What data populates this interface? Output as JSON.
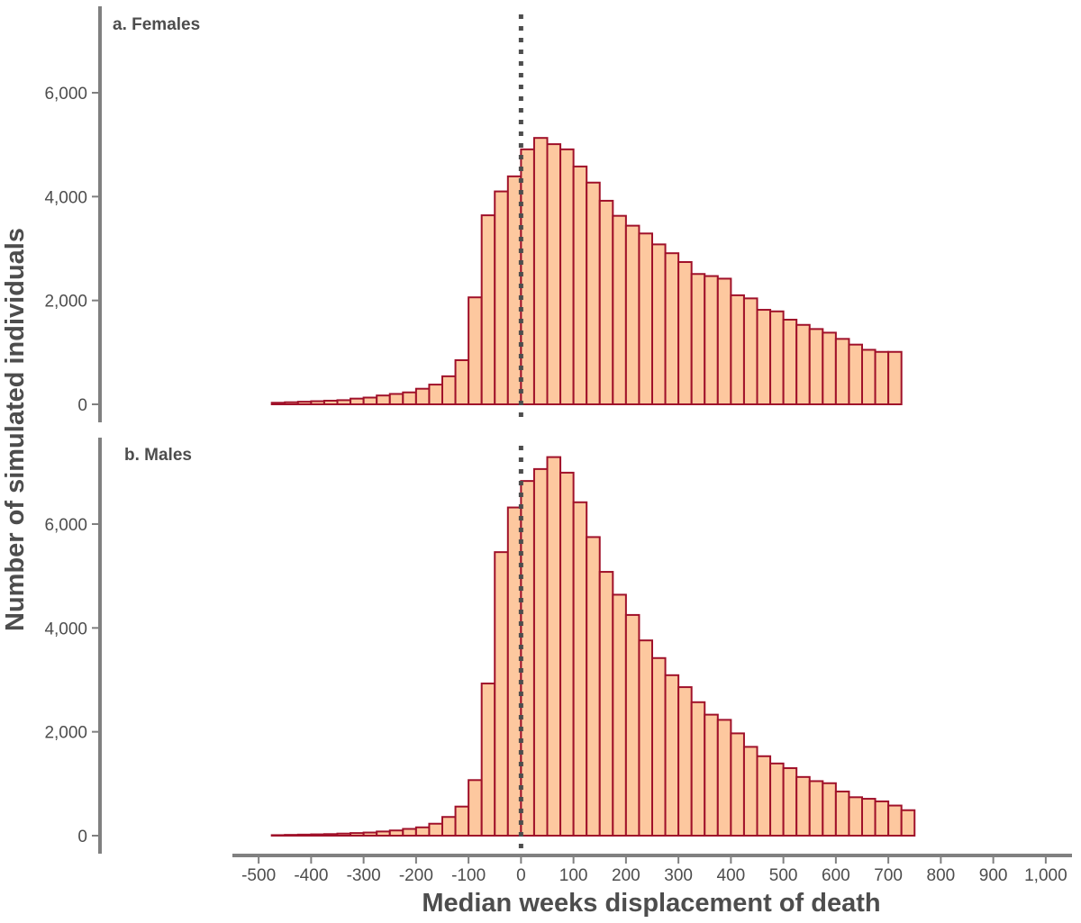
{
  "chart_data": {
    "type": "bar",
    "ylabel": "Number of simulated individuals",
    "xlabel": "Median weeks displacement of death",
    "bin_width": 25,
    "bin_start": -475,
    "xlim": [
      -550,
      1050
    ],
    "x_ticks": [
      -500,
      -400,
      -300,
      -200,
      -100,
      0,
      100,
      200,
      300,
      400,
      500,
      600,
      700,
      800,
      900,
      1000
    ],
    "x_tick_labels": [
      "-500",
      "-400",
      "-300",
      "-200",
      "-100",
      "0",
      "100",
      "200",
      "300",
      "400",
      "500",
      "600",
      "700",
      "800",
      "900",
      "1,000"
    ],
    "ylim": [
      0,
      7300
    ],
    "y_ticks": [
      0,
      2000,
      4000,
      6000
    ],
    "y_tick_labels": [
      "0",
      "2,000",
      "4,000",
      "6,000"
    ],
    "reference_line": {
      "x": 0,
      "style": "dotted"
    },
    "colors": {
      "fill": "#fdc89f",
      "stroke": "#a0112a",
      "axis": "#808080",
      "text": "#4d4d4d",
      "refline": "#4d4d4d"
    },
    "panels": [
      {
        "title": "a. Females",
        "values": [
          30,
          40,
          50,
          60,
          70,
          80,
          110,
          130,
          170,
          200,
          230,
          300,
          380,
          540,
          850,
          2060,
          3640,
          4100,
          4390,
          4910,
          5130,
          5010,
          4910,
          4580,
          4270,
          3920,
          3630,
          3440,
          3290,
          3080,
          2910,
          2740,
          2510,
          2470,
          2420,
          2100,
          2040,
          1820,
          1790,
          1630,
          1530,
          1450,
          1380,
          1260,
          1150,
          1050,
          1010,
          1010
        ]
      },
      {
        "title": "b. Males",
        "values": [
          10,
          15,
          20,
          25,
          30,
          40,
          50,
          60,
          80,
          100,
          130,
          160,
          230,
          360,
          560,
          1070,
          2930,
          5460,
          6320,
          6830,
          7060,
          7290,
          6990,
          6420,
          5750,
          5080,
          4640,
          4250,
          3760,
          3420,
          3090,
          2860,
          2570,
          2330,
          2230,
          1970,
          1710,
          1530,
          1390,
          1300,
          1130,
          1050,
          1010,
          850,
          740,
          710,
          660,
          580,
          490
        ]
      }
    ]
  }
}
